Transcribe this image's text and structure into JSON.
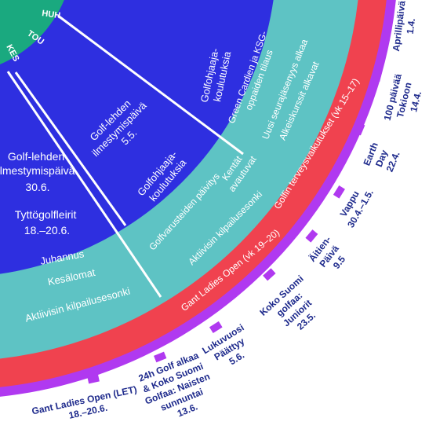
{
  "colors": {
    "background": "#ffffff",
    "center_green": "#1aa97f",
    "months_blue": "#2e2fe0",
    "teal_band": "#5ec3c4",
    "red_band": "#f0424f",
    "purple_band": "#b039f0",
    "label_navy": "#1e2a8c",
    "white_text": "#ffffff"
  },
  "inner_ring": {
    "labels": [
      "HUH",
      "TOU",
      "KES"
    ]
  },
  "month_sectors": {
    "may": {
      "items": [
        [
          "Golfohjaaja-",
          "koulutuksia"
        ],
        [
          "Golf-lehden",
          "ilmestymispäivä",
          "5.5."
        ],
        [
          "Golfohjaaja-",
          "koulutuksia"
        ]
      ]
    },
    "june": {
      "items": [
        [
          "Golf-lehden",
          "ilmestymispäivä",
          "30.6."
        ],
        [
          "Tyttögolfleirit",
          "18.–20.6."
        ]
      ]
    }
  },
  "teal_band": {
    "items": [
      [
        "Green Cardien ja KSG-",
        "oppaiden tilaus"
      ],
      [
        "Uusi seurajäsenyys alkaa"
      ],
      [
        "Alkeiskurssit alkavat"
      ],
      [
        "Kentät",
        "avautuvat"
      ],
      [
        "Golfvarusteiden päivitys"
      ],
      [
        "Aktiivisin kilpailusesonki"
      ],
      [
        "Juhannus"
      ],
      [
        "Kesälomat"
      ],
      [
        "Aktiivisin kilpailusesonki"
      ]
    ]
  },
  "red_band": {
    "items": [
      "Golfin terveysvaikutukset (vk 15–17)",
      "Gant Ladies Open (vk 19–20)"
    ]
  },
  "outer_events": [
    [
      "Aprillipäivä",
      "1.4."
    ],
    [
      "100 päivää",
      "Tokioon",
      "14.4."
    ],
    [
      "Earth",
      "Day",
      "22.4."
    ],
    [
      "Vappu",
      "30.4.–1.5."
    ],
    [
      "Äitien-",
      "Päivä",
      "9.5"
    ],
    [
      "Koko Suomi",
      "golfaa:",
      "Juniorit",
      "23.5."
    ],
    [
      "Lukuvuosi",
      "Päättyy",
      "5.6."
    ],
    [
      "24h Golf alkaa",
      "& Koko Suomi",
      "Golfaa: Naisten",
      "sunnuntai",
      "13.6."
    ],
    [
      "Gant Ladies Open (LET)",
      "18.–20.6."
    ]
  ]
}
